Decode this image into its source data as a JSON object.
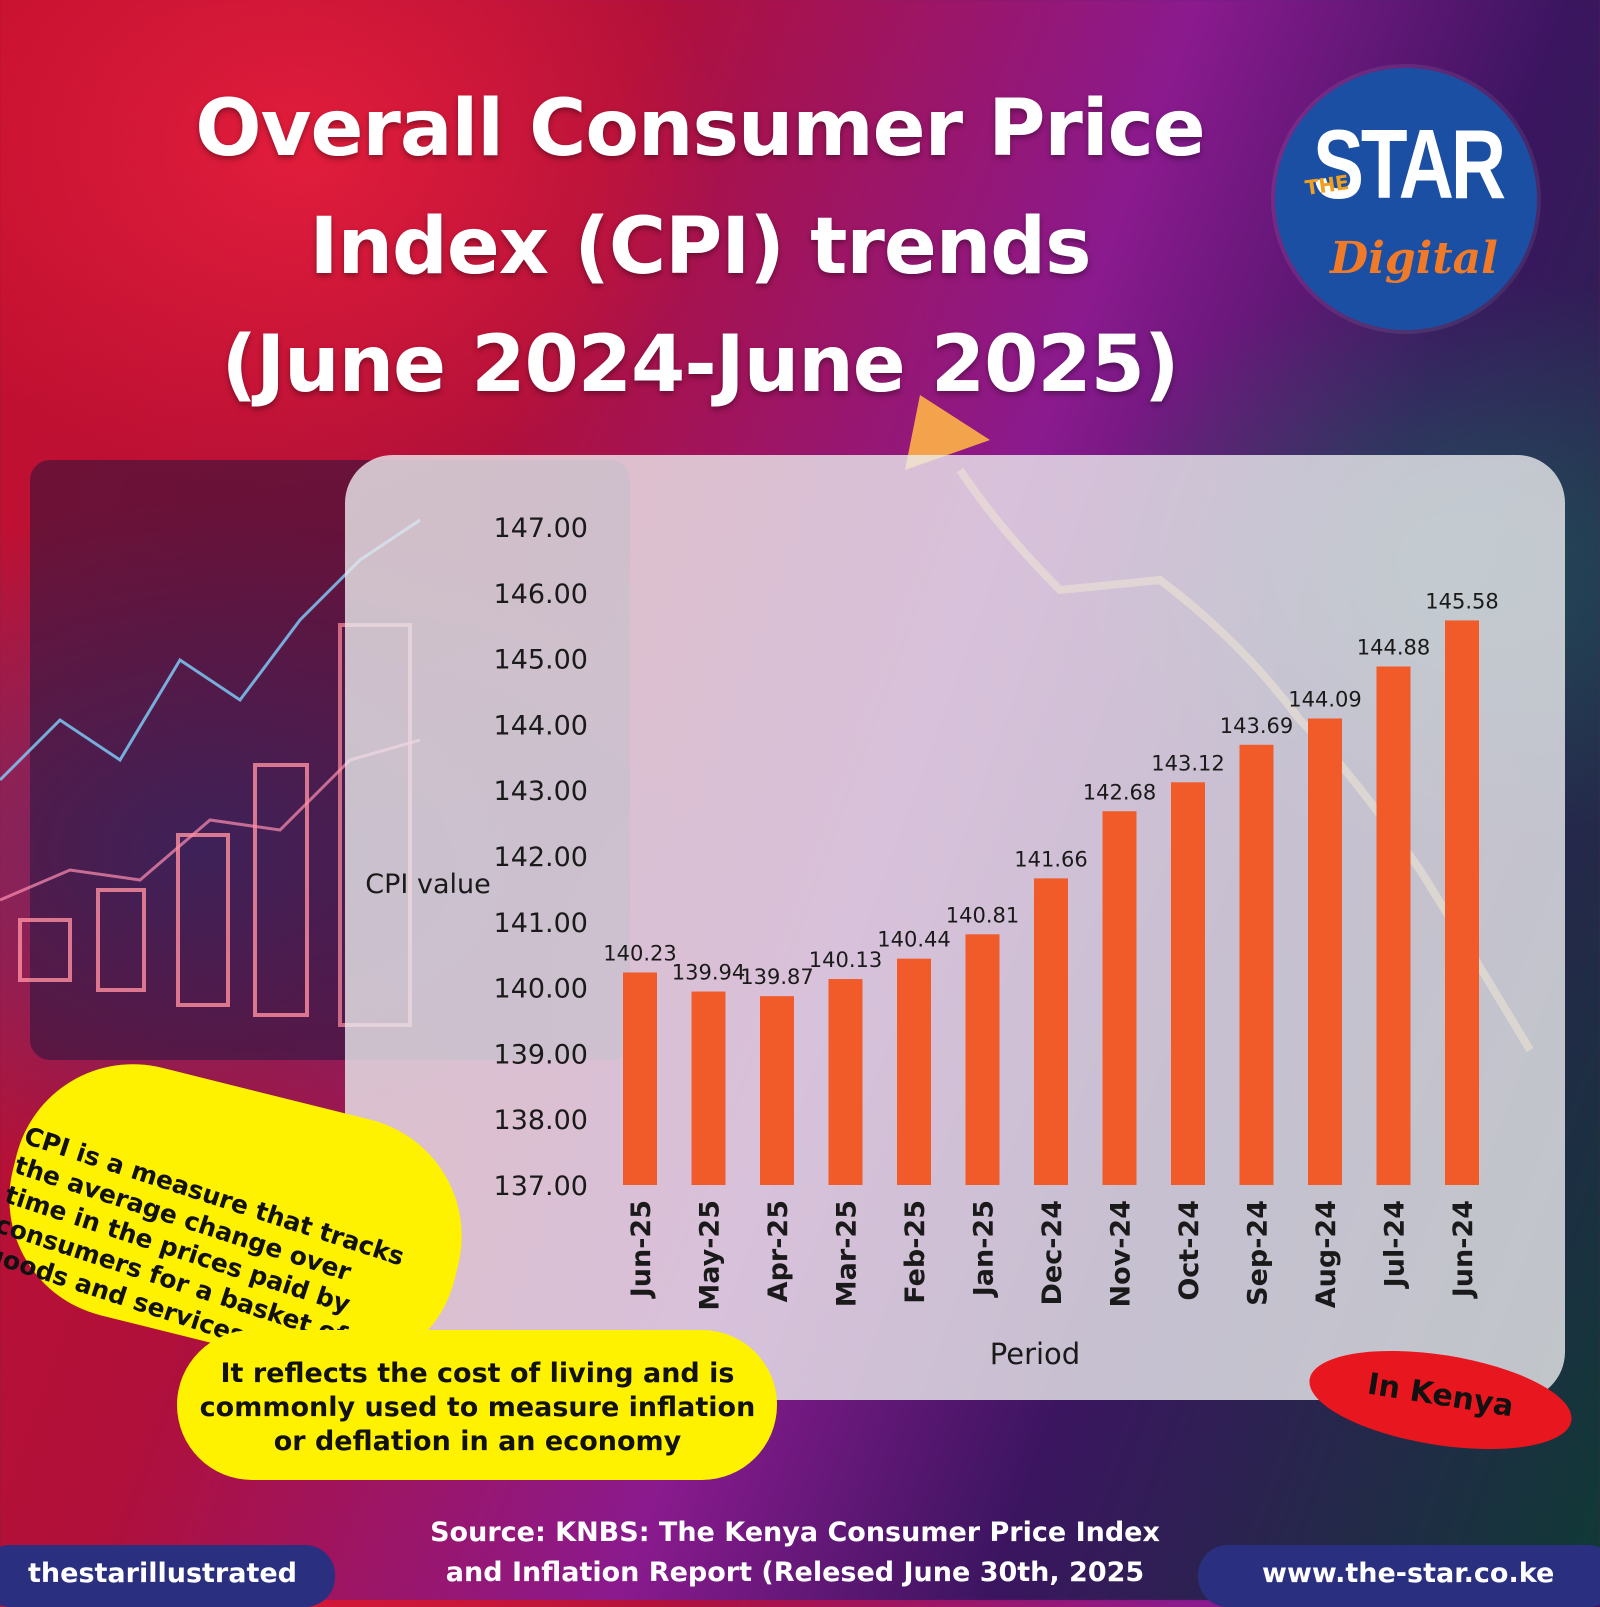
{
  "title": {
    "line1": "Overall Consumer Price",
    "line2": "Index (CPI) trends",
    "line3": "(June 2024-June 2025)"
  },
  "logo": {
    "the": "THE",
    "star": "STAR",
    "digital": "Digital"
  },
  "chart_data": {
    "type": "bar",
    "title": "Overall Consumer Price Index (CPI) trends (June 2024-June 2025)",
    "xlabel": "Period",
    "ylabel": "CPI value",
    "categories": [
      "Jun-25",
      "May-25",
      "Apr-25",
      "Mar-25",
      "Feb-25",
      "Jan-25",
      "Dec-24",
      "Nov-24",
      "Oct-24",
      "Sep-24",
      "Aug-24",
      "Jul-24",
      "Jun-24"
    ],
    "values": [
      140.23,
      139.94,
      139.87,
      140.13,
      140.44,
      140.81,
      141.66,
      142.68,
      143.12,
      143.69,
      144.09,
      144.88,
      145.58
    ],
    "data_labels": [
      "140.23",
      "139.94",
      "139.87",
      "140.13",
      "140.44",
      "140.81",
      "141.66",
      "142.68",
      "143.12",
      "143.69",
      "144.09",
      "144.88",
      "145.58"
    ],
    "yticks": [
      "137.00",
      "138.00",
      "139.00",
      "140.00",
      "141.00",
      "142.00",
      "143.00",
      "144.00",
      "145.00",
      "146.00",
      "147.00"
    ],
    "ylim": [
      137,
      147
    ],
    "bar_color": "#f15a29",
    "grid": false,
    "legend": "none"
  },
  "callouts": {
    "definition": "CPI is a measure that tracks the average change over time in the prices paid by consumers for a basket of goods and services",
    "usage": "It reflects the cost of living and is commonly used to measure inflation or deflation in an economy",
    "region": "In Kenya"
  },
  "source": {
    "line1": "Source: KNBS: The Kenya Consumer Price Index",
    "line2": "and Inflation Report (Relesed June 30th, 2025"
  },
  "footer": {
    "handle": "thestarillustrated",
    "website": "www.the-star.co.ke"
  },
  "colors": {
    "bar": "#f15a29",
    "callout_yellow": "#fff200",
    "badge_red": "#e8171f",
    "footer_navy": "#2a2f80",
    "logo_blue": "#1a4fa3",
    "logo_orange": "#f07a28"
  }
}
